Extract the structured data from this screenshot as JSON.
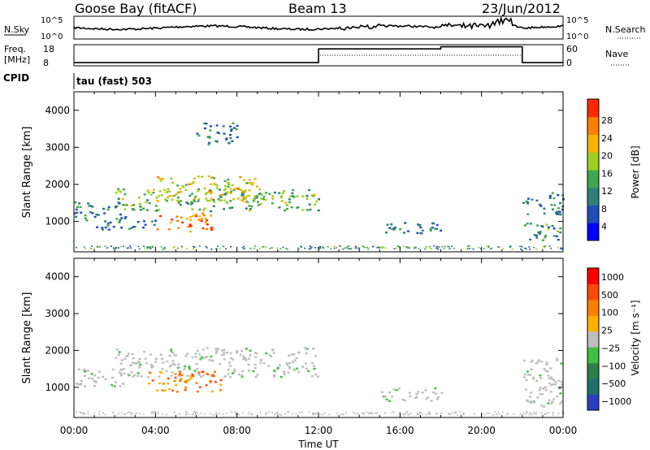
{
  "header": {
    "station": "Goose Bay (fitACF)",
    "beam": "Beam 13",
    "date": "23/Jun/2012"
  },
  "status_panels": {
    "left_labels": {
      "nsky": "N.Sky",
      "freq": "Freq.",
      "mhz": "[MHz]",
      "cpid": "CPID"
    },
    "right_labels": {
      "nsearch": "N.Search",
      "nave": "Nave"
    },
    "noise_ticks_left": [
      "10^5",
      "10^0"
    ],
    "noise_ticks_right": [
      "10^5",
      "10^0"
    ],
    "freq_ticks": [
      "18",
      "8"
    ],
    "nave_ticks": [
      "60",
      "0"
    ],
    "cpid_text": "tau (fast) 503",
    "freq_steps": [
      {
        "start": 0,
        "end": 12,
        "level": 0.15
      },
      {
        "start": 12,
        "end": 18,
        "level": 0.8
      },
      {
        "start": 18,
        "end": 22,
        "level": 0.9
      },
      {
        "start": 22,
        "end": 24,
        "level": 0.15
      }
    ],
    "nave_steps": [
      {
        "start": 0,
        "end": 12,
        "level": 0.15
      },
      {
        "start": 12,
        "end": 22,
        "level": 0.5
      },
      {
        "start": 22,
        "end": 24,
        "level": 0.15
      }
    ]
  },
  "chart_data": [
    {
      "type": "heatmap",
      "name": "power",
      "ylabel": "Slant Range [km]",
      "colorbar_label": "Power [dB]",
      "colorbar_ticks": [
        "28",
        "24",
        "20",
        "16",
        "12",
        "8",
        "4"
      ],
      "colorbar_colors": [
        "#0000ff",
        "#1f4eb8",
        "#2e7f7a",
        "#3fa64e",
        "#9fd01f",
        "#f4b300",
        "#ff7f00",
        "#ff2a00"
      ],
      "xlim": [
        0,
        24
      ],
      "ylim": [
        180,
        4500
      ],
      "yticks": [
        1000,
        2000,
        3000,
        4000
      ],
      "regions": [
        {
          "t0": 2.0,
          "t1": 12.0,
          "r0": 1300,
          "r1": 1900,
          "weight": 0.55
        },
        {
          "t0": 4.0,
          "t1": 9.0,
          "r0": 1550,
          "r1": 2250,
          "weight": 0.7
        },
        {
          "t0": 4.0,
          "t1": 6.8,
          "r0": 750,
          "r1": 1250,
          "weight": 0.95
        },
        {
          "t0": 0.0,
          "t1": 2.5,
          "r0": 1050,
          "r1": 1550,
          "weight": 0.3
        },
        {
          "t0": 1.0,
          "t1": 4.0,
          "r0": 800,
          "r1": 1100,
          "weight": 0.35
        },
        {
          "t0": 6.0,
          "t1": 8.0,
          "r0": 3100,
          "r1": 3700,
          "weight": 0.3
        },
        {
          "t0": 15.0,
          "t1": 18.0,
          "r0": 650,
          "r1": 1000,
          "weight": 0.3
        },
        {
          "t0": 22.0,
          "t1": 24.0,
          "r0": 1200,
          "r1": 1800,
          "weight": 0.3
        },
        {
          "t0": 22.0,
          "t1": 24.0,
          "r0": 500,
          "r1": 1000,
          "weight": 0.4
        }
      ]
    },
    {
      "type": "heatmap",
      "name": "velocity",
      "ylabel": "Slant Range [km]",
      "xlabel": "Time UT",
      "colorbar_label": "Velocity [m s⁻¹]",
      "colorbar_ticks": [
        "1000",
        "500",
        "100",
        "25",
        "−25",
        "−100",
        "−500",
        "−1000"
      ],
      "colorbar_colors": [
        "#2b3fbf",
        "#1f6f6f",
        "#2c7f48",
        "#3fbf3f",
        "#bebebe",
        "#ffb000",
        "#ff7f00",
        "#ff4a00",
        "#ff0000"
      ],
      "xlim": [
        0,
        24
      ],
      "ylim": [
        180,
        4500
      ],
      "xticks": [
        "00:00",
        "04:00",
        "08:00",
        "12:00",
        "16:00",
        "20:00",
        "00:00"
      ],
      "yticks": [
        1000,
        2000,
        3000,
        4000
      ],
      "regions": [
        {
          "t0": 2.0,
          "t1": 12.0,
          "r0": 1300,
          "r1": 2100,
          "kind": "gray"
        },
        {
          "t0": 0.0,
          "t1": 2.5,
          "r0": 1050,
          "r1": 1550,
          "kind": "gray"
        },
        {
          "t0": 3.5,
          "t1": 7.2,
          "r0": 900,
          "r1": 1450,
          "kind": "orange"
        },
        {
          "t0": 15.0,
          "t1": 18.0,
          "r0": 650,
          "r1": 1000,
          "kind": "gray"
        },
        {
          "t0": 22.0,
          "t1": 24.0,
          "r0": 500,
          "r1": 1800,
          "kind": "gray"
        }
      ]
    }
  ]
}
